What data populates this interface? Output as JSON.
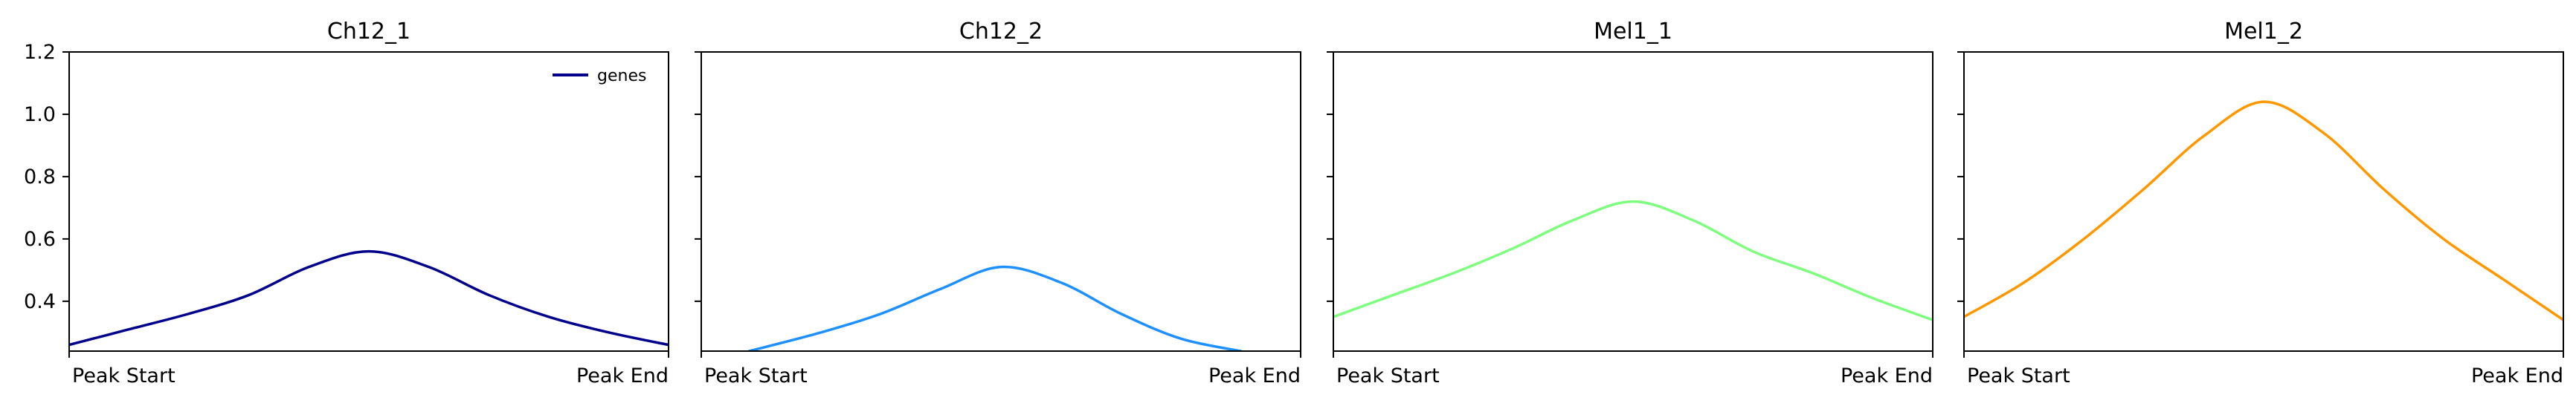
{
  "chart_data": [
    {
      "type": "line",
      "title": "Ch12_1",
      "x_ticks": [
        "Peak Start",
        "Peak End"
      ],
      "y_ticks": [
        "0.4",
        "0.6",
        "0.8",
        "1.0",
        "1.2"
      ],
      "ylim": [
        0.24,
        1.2
      ],
      "y_tick_values": [
        0.4,
        0.6,
        0.8,
        1.0,
        1.2
      ],
      "legend": {
        "position": "top-right",
        "entries": [
          "genes"
        ]
      },
      "series": [
        {
          "name": "genes",
          "color": "#00008b",
          "x": [
            0,
            0.1,
            0.2,
            0.3,
            0.4,
            0.5,
            0.6,
            0.7,
            0.8,
            0.9,
            1.0
          ],
          "y": [
            0.26,
            0.31,
            0.36,
            0.42,
            0.51,
            0.56,
            0.51,
            0.42,
            0.35,
            0.3,
            0.26
          ]
        }
      ]
    },
    {
      "type": "line",
      "title": "Ch12_2",
      "x_ticks": [
        "Peak Start",
        "Peak End"
      ],
      "ylim": [
        0.24,
        1.2
      ],
      "y_tick_values": [
        0.4,
        0.6,
        0.8,
        1.0,
        1.2
      ],
      "series": [
        {
          "color": "#1e90ff",
          "x": [
            0.08,
            0.2,
            0.3,
            0.4,
            0.5,
            0.6,
            0.7,
            0.8,
            0.9
          ],
          "y": [
            0.24,
            0.3,
            0.36,
            0.44,
            0.51,
            0.46,
            0.36,
            0.28,
            0.24
          ]
        }
      ]
    },
    {
      "type": "line",
      "title": "Mel1_1",
      "x_ticks": [
        "Peak Start",
        "Peak End"
      ],
      "ylim": [
        0.24,
        1.2
      ],
      "y_tick_values": [
        0.4,
        0.6,
        0.8,
        1.0,
        1.2
      ],
      "series": [
        {
          "color": "#7fff7f",
          "x": [
            0,
            0.1,
            0.2,
            0.3,
            0.4,
            0.5,
            0.6,
            0.7,
            0.8,
            0.9,
            1.0
          ],
          "y": [
            0.35,
            0.42,
            0.49,
            0.57,
            0.66,
            0.72,
            0.66,
            0.56,
            0.49,
            0.41,
            0.34
          ]
        }
      ]
    },
    {
      "type": "line",
      "title": "Mel1_2",
      "x_ticks": [
        "Peak Start",
        "Peak End"
      ],
      "ylim": [
        0.24,
        1.2
      ],
      "y_tick_values": [
        0.4,
        0.6,
        0.8,
        1.0,
        1.2
      ],
      "series": [
        {
          "color": "#ff9800",
          "x": [
            0,
            0.1,
            0.2,
            0.3,
            0.4,
            0.5,
            0.6,
            0.7,
            0.8,
            0.9,
            1.0
          ],
          "y": [
            0.35,
            0.46,
            0.6,
            0.76,
            0.93,
            1.04,
            0.94,
            0.76,
            0.6,
            0.47,
            0.34
          ]
        }
      ]
    }
  ]
}
